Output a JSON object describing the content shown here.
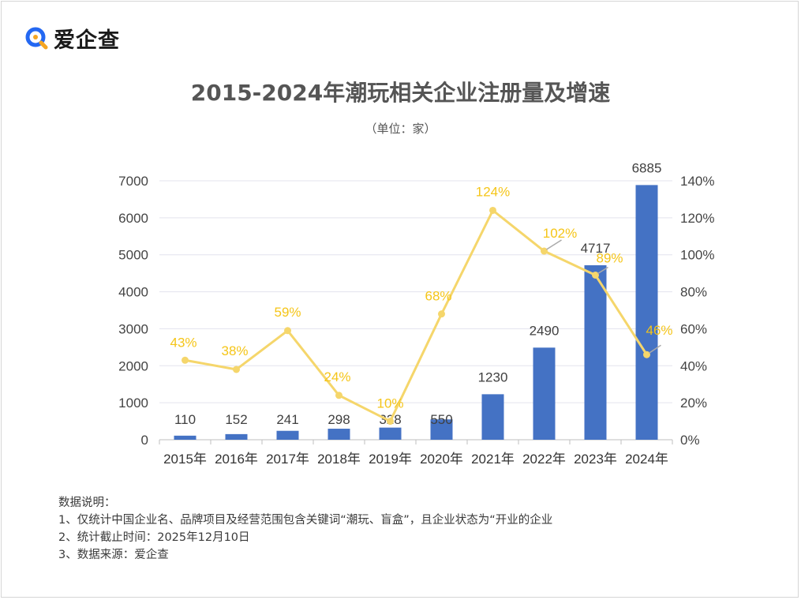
{
  "logo": {
    "text": "爱企查",
    "icon": "magnifier-logo-icon",
    "colors": {
      "blue": "#2468f2",
      "orange": "#f5a623"
    }
  },
  "chart_data": {
    "type": "bar+line",
    "title": "2015-2024年潮玩相关企业注册量及增速",
    "subtitle": "（单位：家）",
    "categories": [
      "2015年",
      "2016年",
      "2017年",
      "2018年",
      "2019年",
      "2020年",
      "2021年",
      "2022年",
      "2023年",
      "2024年"
    ],
    "series": [
      {
        "name": "注册量",
        "type": "bar",
        "axis": "left",
        "color": "#4472c4",
        "values": [
          110,
          152,
          241,
          298,
          328,
          550,
          1230,
          2490,
          4717,
          6885
        ],
        "labels": [
          "110",
          "152",
          "241",
          "298",
          "328",
          "550",
          "1230",
          "2490",
          "4717",
          "6885"
        ]
      },
      {
        "name": "增速",
        "type": "line",
        "axis": "right",
        "color": "#f5d66b",
        "label_color": "#f5c518",
        "values": [
          43,
          38,
          59,
          24,
          10,
          68,
          124,
          102,
          89,
          46
        ],
        "labels": [
          "43%",
          "38%",
          "59%",
          "24%",
          "10%",
          "68%",
          "124%",
          "102%",
          "89%",
          "46%"
        ]
      }
    ],
    "y_left": {
      "min": 0,
      "max": 7000,
      "step": 1000,
      "ticks": [
        "0",
        "1000",
        "2000",
        "3000",
        "4000",
        "5000",
        "6000",
        "7000"
      ]
    },
    "y_right": {
      "min": 0,
      "max": 140,
      "step": 20,
      "ticks": [
        "0%",
        "20%",
        "40%",
        "60%",
        "80%",
        "100%",
        "120%",
        "140%"
      ]
    },
    "grid": true,
    "gridline_color": "#e3e3ee"
  },
  "notes": {
    "heading": "数据说明：",
    "items": [
      "1、仅统计中国企业名、品牌项目及经营范围包含关键词“潮玩、盲盒”，且企业状态为“开业的企业",
      "2、统计截止时间：2025年12月10日",
      "3、数据来源：爱企查"
    ]
  }
}
